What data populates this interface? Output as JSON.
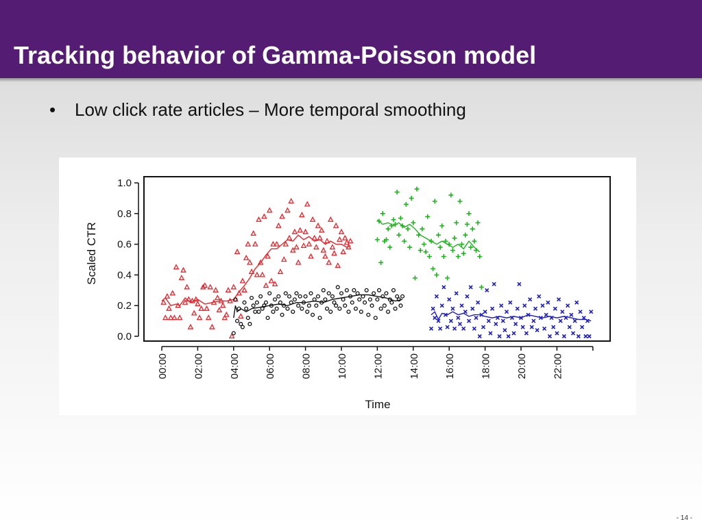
{
  "slide": {
    "title": "Tracking behavior of Gamma-Poisson model",
    "bullet": "Low click rate articles – More temporal smoothing",
    "page_number": "- 14 -",
    "theme_color": "#541c73"
  },
  "chart_data": {
    "type": "scatter",
    "title": "",
    "xlabel": "Time",
    "ylabel": "Scaled CTR",
    "xlim": [
      0,
      24
    ],
    "ylim": [
      0,
      1.0
    ],
    "y_ticks": [
      "0.0",
      "0.2",
      "0.4",
      "0.6",
      "0.8",
      "1.0"
    ],
    "x_tick_hours": [
      0,
      2,
      4,
      6,
      8,
      10,
      12,
      14,
      16,
      18,
      20,
      22
    ],
    "x_tick_labels": [
      "00:00",
      "02:00",
      "04:00",
      "06:00",
      "08:00",
      "10:00",
      "12:00",
      "14:00",
      "16:00",
      "18:00",
      "20:00",
      "22:00"
    ],
    "grid": false,
    "legend": "none",
    "series": [
      {
        "color": "#e8232a",
        "marker": "triangle",
        "x": [
          0.1,
          0.2,
          0.3,
          0.4,
          0.5,
          0.6,
          0.7,
          0.8,
          0.9,
          1.0,
          1.1,
          1.2,
          1.3,
          1.4,
          1.5,
          1.6,
          1.7,
          1.8,
          1.9,
          2.0,
          2.1,
          2.2,
          2.3,
          2.4,
          2.5,
          2.6,
          2.7,
          2.8,
          2.9,
          3.0,
          3.1,
          3.2,
          3.3,
          3.4,
          3.5,
          3.6,
          3.7,
          3.8,
          3.9,
          4.0,
          4.1,
          4.2,
          4.3,
          4.4,
          4.5,
          4.6,
          4.7,
          4.8,
          4.9,
          5.0,
          5.1,
          5.2,
          5.3,
          5.4,
          5.5,
          5.6,
          5.7,
          5.8,
          5.9,
          6.0,
          6.1,
          6.2,
          6.3,
          6.4,
          6.5,
          6.6,
          6.7,
          6.8,
          6.9,
          7.0,
          7.1,
          7.2,
          7.3,
          7.4,
          7.5,
          7.6,
          7.7,
          7.8,
          7.9,
          8.0,
          8.1,
          8.2,
          8.3,
          8.4,
          8.5,
          8.6,
          8.7,
          8.8,
          8.9,
          9.0,
          9.1,
          9.2,
          9.3,
          9.4,
          9.5,
          9.6,
          9.7,
          9.8,
          9.9,
          10.0,
          10.1,
          10.2,
          10.3,
          10.4,
          10.5
        ],
        "y": [
          0.22,
          0.12,
          0.26,
          0.18,
          0.12,
          0.28,
          0.12,
          0.45,
          0.2,
          0.12,
          0.38,
          0.43,
          0.22,
          0.32,
          0.24,
          0.06,
          0.23,
          0.15,
          0.24,
          0.21,
          0.12,
          0.18,
          0.32,
          0.33,
          0.18,
          0.12,
          0.32,
          0.06,
          0.22,
          0.3,
          0.25,
          0.17,
          0.23,
          0.2,
          0.12,
          0.14,
          0.3,
          0.23,
          0.0,
          0.32,
          0.24,
          0.55,
          0.28,
          0.13,
          0.36,
          0.3,
          0.51,
          0.6,
          0.48,
          0.42,
          0.67,
          0.6,
          0.4,
          0.76,
          0.48,
          0.4,
          0.78,
          0.33,
          0.52,
          0.82,
          0.36,
          0.6,
          0.34,
          0.6,
          0.72,
          0.42,
          0.78,
          0.5,
          0.6,
          0.82,
          0.64,
          0.88,
          0.56,
          0.68,
          0.58,
          0.48,
          0.69,
          0.79,
          0.59,
          0.68,
          0.86,
          0.6,
          0.52,
          0.76,
          0.64,
          0.58,
          0.72,
          0.64,
          0.69,
          0.56,
          0.52,
          0.62,
          0.48,
          0.76,
          0.58,
          0.54,
          0.72,
          0.46,
          0.63,
          0.68,
          0.55,
          0.64,
          0.61,
          0.58,
          0.62
        ],
        "trend": [
          [
            0.0,
            0.23
          ],
          [
            0.2,
            0.25
          ],
          [
            0.5,
            0.2
          ],
          [
            0.8,
            0.21
          ],
          [
            1.0,
            0.2
          ],
          [
            1.3,
            0.25
          ],
          [
            1.6,
            0.22
          ],
          [
            2.0,
            0.24
          ],
          [
            2.4,
            0.21
          ],
          [
            2.8,
            0.22
          ],
          [
            3.2,
            0.23
          ],
          [
            3.6,
            0.23
          ],
          [
            4.0,
            0.24
          ],
          [
            4.3,
            0.29
          ],
          [
            4.6,
            0.33
          ],
          [
            4.9,
            0.38
          ],
          [
            5.2,
            0.44
          ],
          [
            5.5,
            0.48
          ],
          [
            5.8,
            0.53
          ],
          [
            6.1,
            0.57
          ],
          [
            6.4,
            0.57
          ],
          [
            6.7,
            0.6
          ],
          [
            7.0,
            0.63
          ],
          [
            7.3,
            0.62
          ],
          [
            7.6,
            0.66
          ],
          [
            7.9,
            0.63
          ],
          [
            8.2,
            0.65
          ],
          [
            8.5,
            0.62
          ],
          [
            8.8,
            0.63
          ],
          [
            9.1,
            0.6
          ],
          [
            9.4,
            0.62
          ],
          [
            9.7,
            0.6
          ],
          [
            10.0,
            0.6
          ],
          [
            10.3,
            0.58
          ],
          [
            10.5,
            0.59
          ]
        ]
      },
      {
        "color": "#111111",
        "marker": "circle",
        "x": [
          4.0,
          4.1,
          4.2,
          4.3,
          4.4,
          4.5,
          4.6,
          4.7,
          4.8,
          4.9,
          5.0,
          5.1,
          5.2,
          5.3,
          5.4,
          5.5,
          5.6,
          5.7,
          5.8,
          5.9,
          6.0,
          6.1,
          6.2,
          6.3,
          6.4,
          6.5,
          6.6,
          6.7,
          6.8,
          6.9,
          7.0,
          7.1,
          7.2,
          7.3,
          7.4,
          7.5,
          7.6,
          7.7,
          7.8,
          7.9,
          8.0,
          8.1,
          8.2,
          8.3,
          8.4,
          8.5,
          8.6,
          8.7,
          8.8,
          8.9,
          9.0,
          9.1,
          9.2,
          9.3,
          9.4,
          9.5,
          9.6,
          9.7,
          9.8,
          9.9,
          10.0,
          10.1,
          10.2,
          10.3,
          10.4,
          10.5,
          10.6,
          10.7,
          10.8,
          10.9,
          11.0,
          11.1,
          11.2,
          11.3,
          11.4,
          11.5,
          11.6,
          11.7,
          11.8,
          11.9,
          12.0,
          12.1,
          12.2,
          12.3,
          12.4,
          12.5,
          12.6,
          12.7,
          12.8,
          12.9,
          13.0,
          13.1,
          13.2,
          13.3,
          13.4
        ],
        "y": [
          0.02,
          0.24,
          0.1,
          0.18,
          0.08,
          0.06,
          0.22,
          0.18,
          0.12,
          0.08,
          0.25,
          0.2,
          0.16,
          0.22,
          0.16,
          0.26,
          0.18,
          0.2,
          0.22,
          0.12,
          0.28,
          0.2,
          0.16,
          0.24,
          0.18,
          0.26,
          0.22,
          0.14,
          0.2,
          0.28,
          0.18,
          0.26,
          0.22,
          0.16,
          0.24,
          0.28,
          0.2,
          0.26,
          0.18,
          0.22,
          0.26,
          0.16,
          0.2,
          0.28,
          0.14,
          0.24,
          0.2,
          0.26,
          0.12,
          0.22,
          0.3,
          0.24,
          0.18,
          0.28,
          0.16,
          0.26,
          0.22,
          0.2,
          0.32,
          0.18,
          0.28,
          0.24,
          0.2,
          0.3,
          0.16,
          0.26,
          0.22,
          0.3,
          0.18,
          0.28,
          0.24,
          0.16,
          0.26,
          0.22,
          0.3,
          0.14,
          0.24,
          0.2,
          0.28,
          0.12,
          0.24,
          0.3,
          0.18,
          0.26,
          0.2,
          0.28,
          0.16,
          0.24,
          0.22,
          0.3,
          0.18,
          0.26,
          0.24,
          0.2,
          0.26
        ],
        "trend": [
          [
            4.0,
            0.12
          ],
          [
            4.1,
            0.2
          ],
          [
            4.2,
            0.16
          ],
          [
            4.4,
            0.18
          ],
          [
            4.7,
            0.16
          ],
          [
            5.0,
            0.18
          ],
          [
            5.5,
            0.19
          ],
          [
            6.0,
            0.2
          ],
          [
            6.5,
            0.21
          ],
          [
            7.0,
            0.2
          ],
          [
            7.5,
            0.22
          ],
          [
            8.0,
            0.22
          ],
          [
            8.5,
            0.23
          ],
          [
            9.0,
            0.22
          ],
          [
            9.5,
            0.24
          ],
          [
            10.0,
            0.25
          ],
          [
            10.5,
            0.26
          ],
          [
            11.0,
            0.27
          ],
          [
            11.5,
            0.27
          ],
          [
            12.0,
            0.26
          ],
          [
            12.5,
            0.25
          ],
          [
            13.0,
            0.23
          ],
          [
            13.4,
            0.24
          ]
        ]
      },
      {
        "color": "#1bb51b",
        "marker": "plus",
        "x": [
          12.0,
          12.1,
          12.2,
          12.3,
          12.4,
          12.5,
          12.6,
          12.7,
          12.8,
          12.9,
          13.0,
          13.1,
          13.2,
          13.3,
          13.4,
          13.5,
          13.6,
          13.7,
          13.8,
          13.9,
          14.0,
          14.1,
          14.2,
          14.3,
          14.4,
          14.5,
          14.6,
          14.7,
          14.8,
          14.9,
          15.0,
          15.1,
          15.2,
          15.3,
          15.4,
          15.5,
          15.6,
          15.7,
          15.8,
          15.9,
          16.0,
          16.1,
          16.2,
          16.3,
          16.4,
          16.5,
          16.6,
          16.7,
          16.8,
          16.9,
          17.0,
          17.1,
          17.2,
          17.3,
          17.4,
          17.5,
          17.6,
          17.7,
          17.8
        ],
        "y": [
          0.63,
          0.75,
          0.48,
          0.8,
          0.62,
          0.63,
          0.7,
          0.58,
          0.72,
          0.76,
          0.73,
          0.94,
          0.66,
          0.77,
          0.72,
          0.62,
          0.86,
          0.7,
          0.58,
          0.9,
          0.74,
          0.38,
          0.96,
          0.66,
          0.56,
          0.7,
          0.6,
          0.55,
          0.78,
          0.52,
          0.62,
          0.44,
          0.88,
          0.4,
          0.66,
          0.58,
          0.72,
          0.52,
          0.62,
          0.38,
          0.6,
          0.92,
          0.56,
          0.64,
          0.74,
          0.52,
          0.88,
          0.6,
          0.54,
          0.66,
          0.73,
          0.8,
          0.58,
          0.7,
          0.62,
          0.56,
          0.74,
          0.52,
          0.32
        ],
        "trend": [
          [
            12.0,
            0.76
          ],
          [
            12.3,
            0.73
          ],
          [
            12.6,
            0.74
          ],
          [
            12.9,
            0.72
          ],
          [
            13.2,
            0.74
          ],
          [
            13.5,
            0.71
          ],
          [
            13.8,
            0.73
          ],
          [
            14.1,
            0.7
          ],
          [
            14.4,
            0.66
          ],
          [
            14.7,
            0.64
          ],
          [
            15.0,
            0.62
          ],
          [
            15.3,
            0.6
          ],
          [
            15.6,
            0.62
          ],
          [
            15.9,
            0.6
          ],
          [
            16.2,
            0.58
          ],
          [
            16.5,
            0.6
          ],
          [
            16.8,
            0.57
          ],
          [
            17.1,
            0.62
          ],
          [
            17.4,
            0.58
          ],
          [
            17.7,
            0.55
          ]
        ]
      },
      {
        "color": "#1c1cc8",
        "marker": "x",
        "x": [
          15.0,
          15.1,
          15.2,
          15.3,
          15.4,
          15.5,
          15.6,
          15.7,
          15.8,
          15.9,
          16.0,
          16.1,
          16.2,
          16.3,
          16.4,
          16.5,
          16.6,
          16.7,
          16.8,
          16.9,
          17.0,
          17.1,
          17.2,
          17.3,
          17.4,
          17.5,
          17.6,
          17.7,
          17.8,
          17.9,
          18.0,
          18.1,
          18.2,
          18.3,
          18.4,
          18.5,
          18.6,
          18.7,
          18.8,
          18.9,
          19.0,
          19.1,
          19.2,
          19.3,
          19.4,
          19.5,
          19.6,
          19.7,
          19.8,
          19.9,
          20.0,
          20.1,
          20.2,
          20.3,
          20.4,
          20.5,
          20.6,
          20.7,
          20.8,
          20.9,
          21.0,
          21.1,
          21.2,
          21.3,
          21.4,
          21.5,
          21.6,
          21.7,
          21.8,
          21.9,
          22.0,
          22.1,
          22.2,
          22.3,
          22.4,
          22.5,
          22.6,
          22.7,
          22.8,
          22.9,
          23.0,
          23.1,
          23.2,
          23.3,
          23.4,
          23.5,
          23.6,
          23.7,
          23.8,
          23.9
        ],
        "y": [
          0.05,
          0.18,
          0.12,
          0.26,
          0.1,
          0.05,
          0.2,
          0.32,
          0.14,
          0.06,
          0.24,
          0.1,
          0.18,
          0.05,
          0.28,
          0.12,
          0.08,
          0.2,
          0.05,
          0.16,
          0.26,
          0.1,
          0.32,
          0.18,
          0.05,
          0.12,
          0.22,
          0.0,
          0.14,
          0.06,
          0.16,
          0.3,
          0.1,
          0.02,
          0.18,
          0.34,
          0.08,
          0.12,
          0.0,
          0.2,
          0.1,
          0.04,
          0.16,
          0.0,
          0.22,
          0.12,
          0.02,
          0.08,
          0.18,
          0.34,
          0.12,
          0.06,
          0.2,
          0.02,
          0.14,
          0.24,
          0.06,
          0.1,
          0.18,
          0.04,
          0.26,
          0.12,
          0.2,
          0.05,
          0.14,
          0.22,
          0.0,
          0.12,
          0.06,
          0.18,
          0.02,
          0.24,
          0.1,
          0.16,
          0.0,
          0.12,
          0.2,
          0.06,
          0.14,
          0.02,
          0.1,
          0.22,
          0.0,
          0.16,
          0.06,
          0.12,
          0.0,
          0.1,
          0.0,
          0.16
        ],
        "trend": [
          [
            15.0,
            0.14
          ],
          [
            15.2,
            0.16
          ],
          [
            15.4,
            0.11
          ],
          [
            15.6,
            0.15
          ],
          [
            15.9,
            0.14
          ],
          [
            16.2,
            0.16
          ],
          [
            16.5,
            0.14
          ],
          [
            16.8,
            0.15
          ],
          [
            17.1,
            0.13
          ],
          [
            17.4,
            0.14
          ],
          [
            17.7,
            0.14
          ],
          [
            18.0,
            0.13
          ],
          [
            18.4,
            0.12
          ],
          [
            18.8,
            0.13
          ],
          [
            19.2,
            0.12
          ],
          [
            19.6,
            0.13
          ],
          [
            20.0,
            0.12
          ],
          [
            20.4,
            0.14
          ],
          [
            20.8,
            0.13
          ],
          [
            21.2,
            0.12
          ],
          [
            21.6,
            0.13
          ],
          [
            22.0,
            0.12
          ],
          [
            22.4,
            0.13
          ],
          [
            22.8,
            0.12
          ],
          [
            23.2,
            0.11
          ],
          [
            23.6,
            0.11
          ],
          [
            23.9,
            0.1
          ]
        ]
      }
    ]
  }
}
